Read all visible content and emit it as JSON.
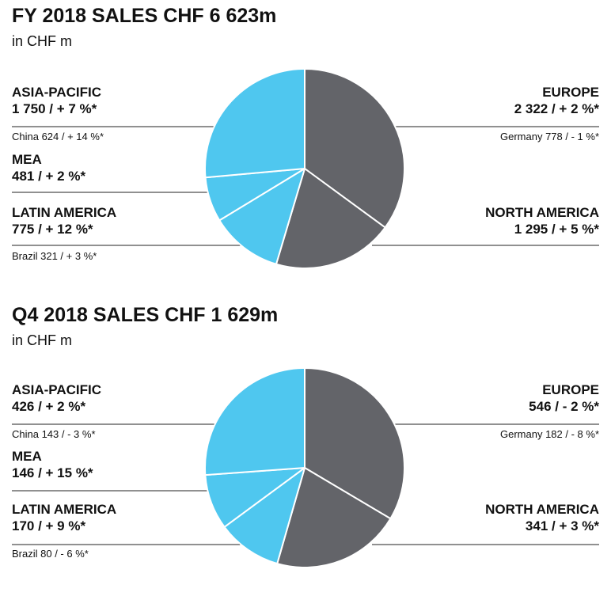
{
  "chart_data": [
    {
      "type": "pie",
      "title": "FY 2018 SALES CHF 6 623m",
      "subtitle": "in CHF m",
      "slices": [
        {
          "label": "EUROPE",
          "value": 2322,
          "change": "+ 2 %*",
          "display": "2 322 / + 2 %*",
          "detail": "Germany 778 / - 1 %*",
          "color": "#636469"
        },
        {
          "label": "NORTH AMERICA",
          "value": 1295,
          "change": "+ 5 %*",
          "display": "1 295 / + 5 %*",
          "detail": "",
          "color": "#636469"
        },
        {
          "label": "LATIN AMERICA",
          "value": 775,
          "change": "+ 12 %*",
          "display": "775 / + 12 %*",
          "detail": "Brazil 321 / + 3 %*",
          "color": "#4fc7ef"
        },
        {
          "label": "MEA",
          "value": 481,
          "change": "+ 2 %*",
          "display": "481 / + 2 %*",
          "detail": "",
          "color": "#4fc7ef"
        },
        {
          "label": "ASIA-PACIFIC",
          "value": 1750,
          "change": "+ 7 %*",
          "display": "1 750 / + 7 %*",
          "detail": "China 624 / + 14 %*",
          "color": "#4fc7ef"
        }
      ]
    },
    {
      "type": "pie",
      "title": "Q4 2018 SALES CHF 1 629m",
      "subtitle": "in CHF m",
      "slices": [
        {
          "label": "EUROPE",
          "value": 546,
          "change": "- 2 %*",
          "display": "546 / - 2 %*",
          "detail": "Germany 182 / - 8 %*",
          "color": "#636469"
        },
        {
          "label": "NORTH AMERICA",
          "value": 341,
          "change": "+ 3 %*",
          "display": "341 / + 3 %*",
          "detail": "",
          "color": "#636469"
        },
        {
          "label": "LATIN AMERICA",
          "value": 170,
          "change": "+ 9 %*",
          "display": "170 / + 9 %*",
          "detail": "Brazil 80 / - 6 %*",
          "color": "#4fc7ef"
        },
        {
          "label": "MEA",
          "value": 146,
          "change": "+ 15 %*",
          "display": "146 / + 15 %*",
          "detail": "",
          "color": "#4fc7ef"
        },
        {
          "label": "ASIA-PACIFIC",
          "value": 426,
          "change": "+ 2 %*",
          "display": "426 / + 2 %*",
          "detail": "China 143 / - 3 %*",
          "color": "#4fc7ef"
        }
      ]
    }
  ]
}
